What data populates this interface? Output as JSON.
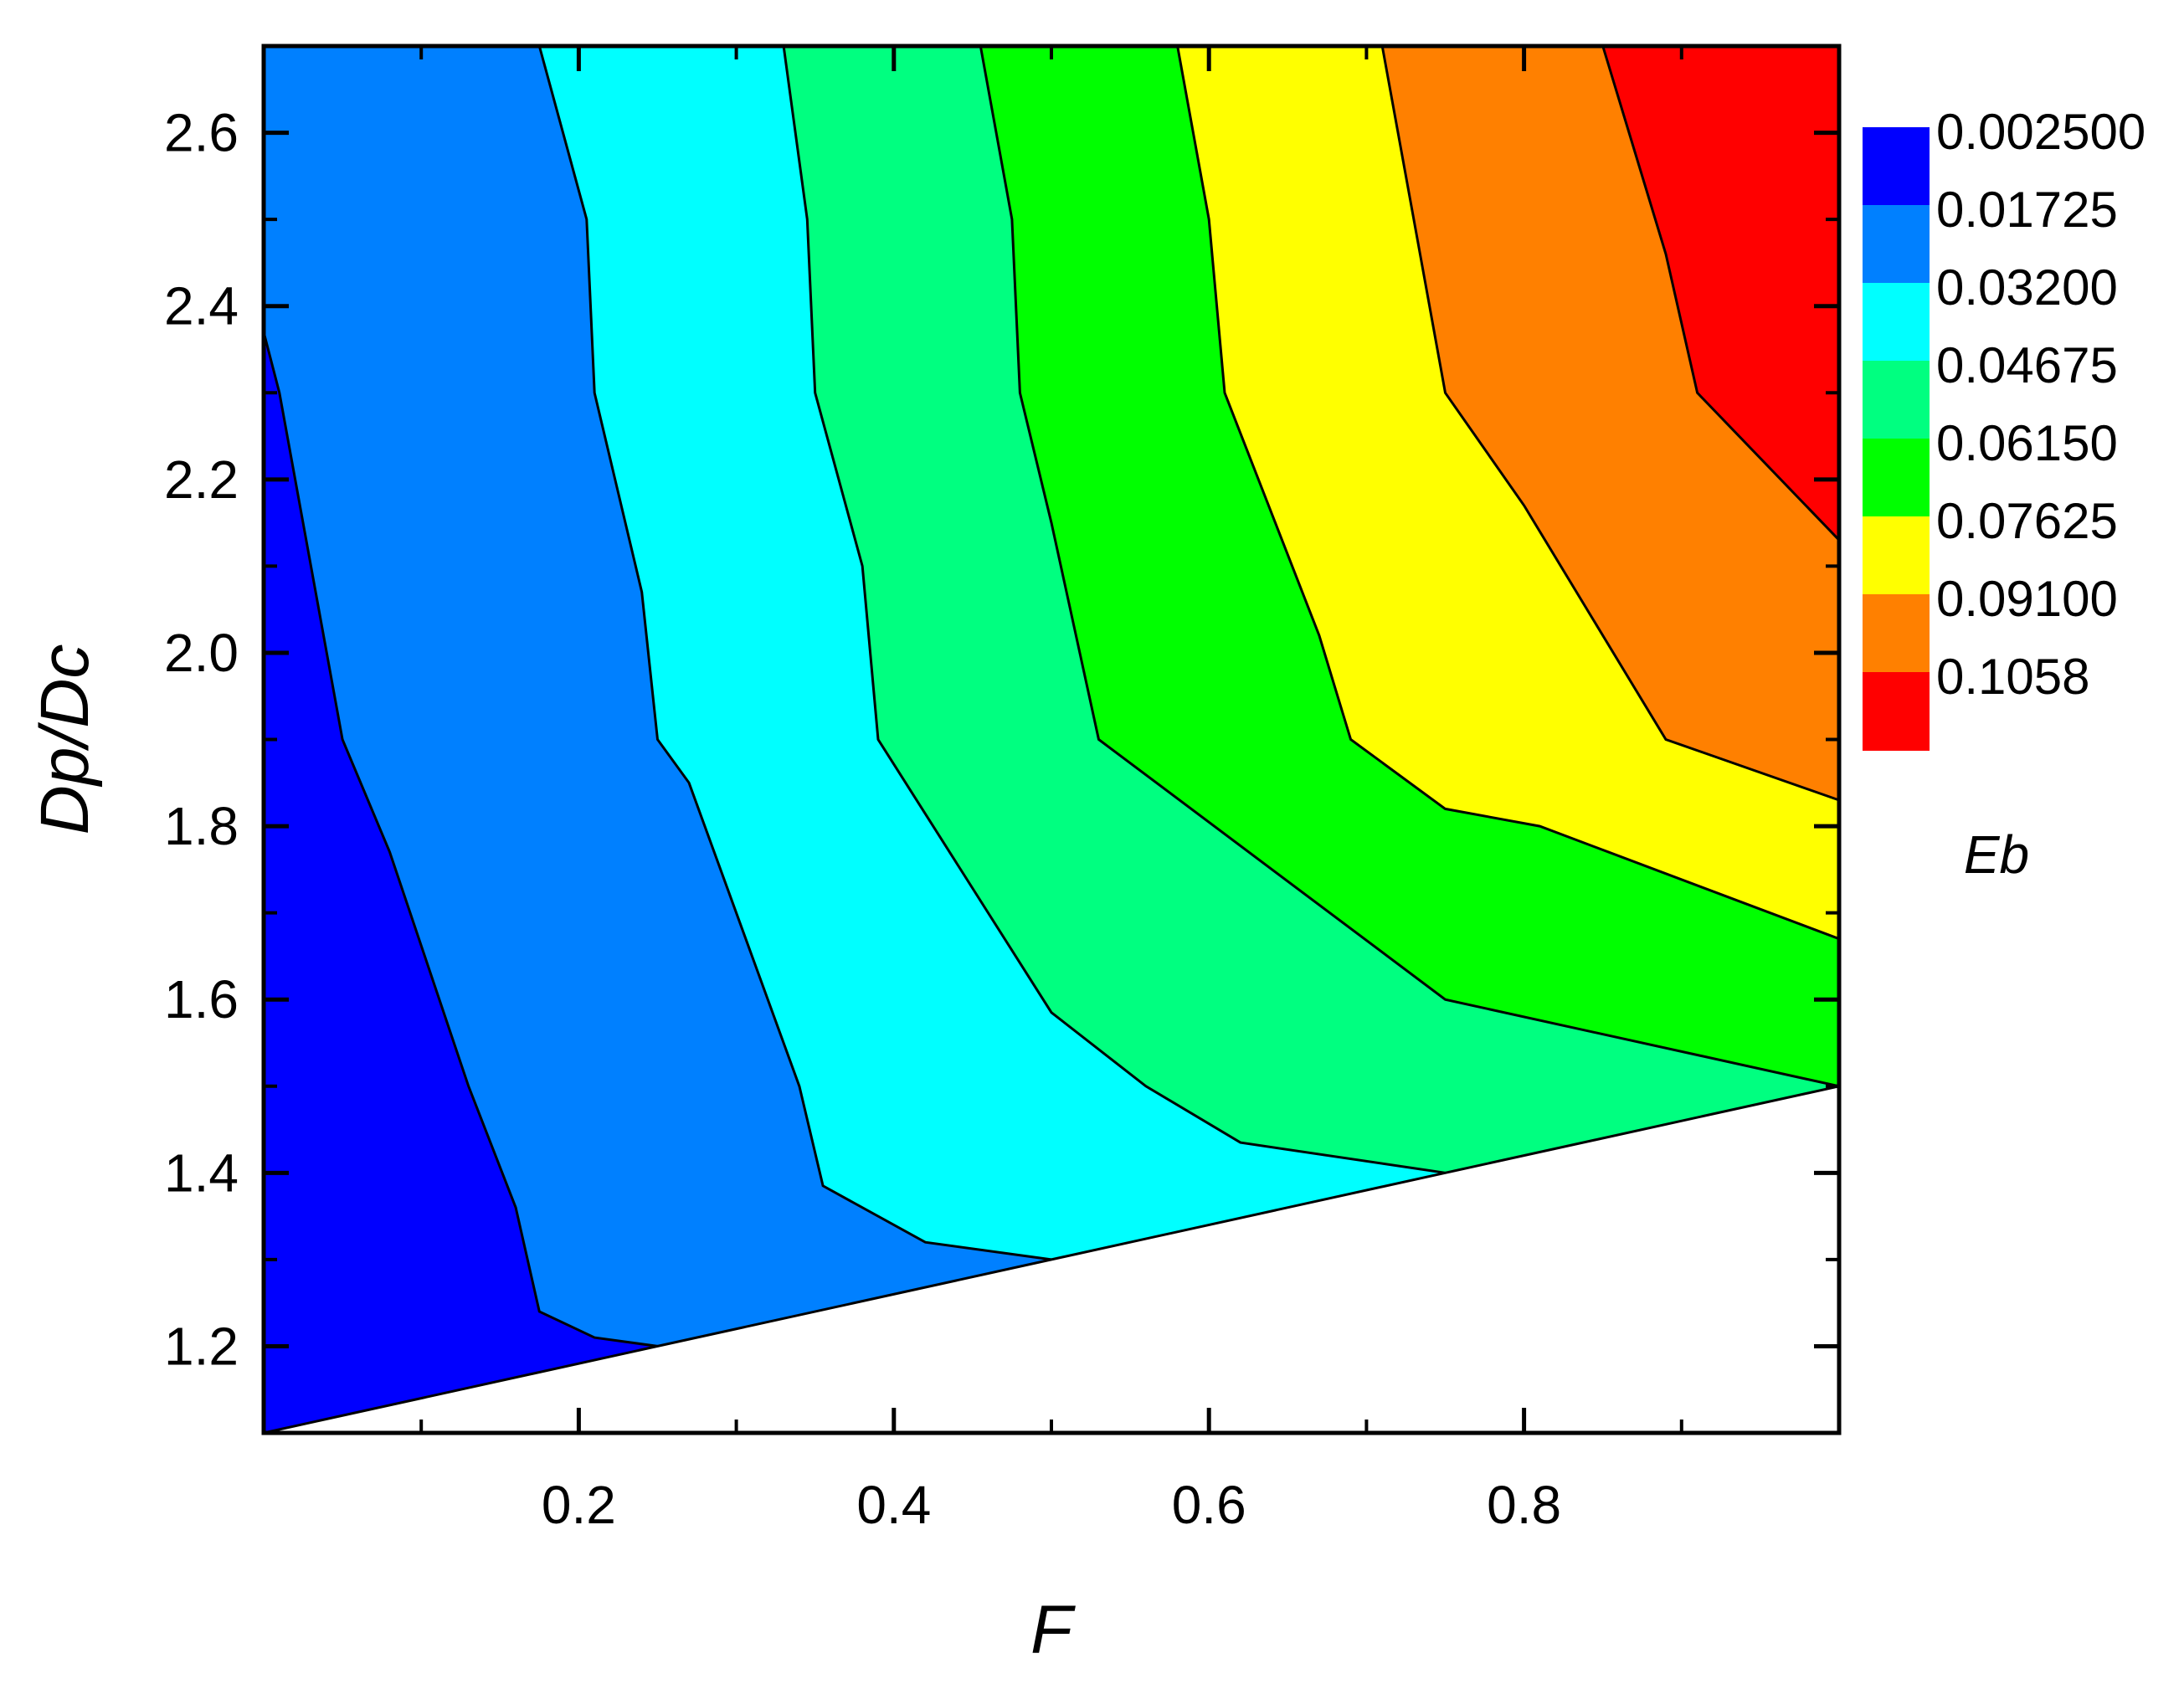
{
  "chart_data": {
    "type": "contour",
    "xlabel": "F",
    "ylabel": "Dp/Dc",
    "legend_title": "Eb",
    "xlim": [
      0.0,
      1.0
    ],
    "ylim": [
      1.1,
      2.7
    ],
    "x_ticks": [
      0.2,
      0.4,
      0.6,
      0.8
    ],
    "x_tick_labels": [
      "0.2",
      "0.4",
      "0.6",
      "0.8"
    ],
    "y_ticks": [
      1.2,
      1.4,
      1.6,
      1.8,
      2.0,
      2.2,
      2.4,
      2.6
    ],
    "y_tick_labels": [
      "1.2",
      "1.4",
      "1.6",
      "1.8",
      "2.0",
      "2.2",
      "2.4",
      "2.6"
    ],
    "levels": [
      "0.002500",
      "0.01725",
      "0.03200",
      "0.04675",
      "0.06150",
      "0.07625",
      "0.09100",
      "0.1058"
    ],
    "level_colors": [
      "#0000ff",
      "#0080ff",
      "#00ffff",
      "#00ff80",
      "#00ff00",
      "#ffff00",
      "#ff8000",
      "#ff0000"
    ],
    "boundary_line": [
      [
        0.0,
        1.1
      ],
      [
        0.25,
        1.2
      ],
      [
        0.5,
        1.3
      ],
      [
        0.75,
        1.4
      ],
      [
        1.0,
        1.5
      ]
    ],
    "contour_lines": [
      {
        "level": "0.01725",
        "points": [
          [
            0.0,
            2.37
          ],
          [
            0.01,
            2.3
          ],
          [
            0.05,
            1.9
          ],
          [
            0.08,
            1.77
          ],
          [
            0.13,
            1.5
          ],
          [
            0.16,
            1.36
          ],
          [
            0.175,
            1.24
          ],
          [
            0.21,
            1.21
          ],
          [
            0.25,
            1.2
          ]
        ]
      },
      {
        "level": "0.03200",
        "points": [
          [
            0.175,
            2.7
          ],
          [
            0.205,
            2.5
          ],
          [
            0.21,
            2.3
          ],
          [
            0.24,
            2.07
          ],
          [
            0.25,
            1.9
          ],
          [
            0.27,
            1.85
          ],
          [
            0.34,
            1.5
          ],
          [
            0.355,
            1.385
          ],
          [
            0.42,
            1.32
          ],
          [
            0.5,
            1.3
          ]
        ]
      },
      {
        "level": "0.04675",
        "points": [
          [
            0.33,
            2.7
          ],
          [
            0.345,
            2.5
          ],
          [
            0.35,
            2.3
          ],
          [
            0.38,
            2.1
          ],
          [
            0.39,
            1.9
          ],
          [
            0.5,
            1.585
          ],
          [
            0.56,
            1.5
          ],
          [
            0.62,
            1.435
          ],
          [
            0.75,
            1.4
          ]
        ]
      },
      {
        "level": "0.06150",
        "points": [
          [
            0.455,
            2.7
          ],
          [
            0.475,
            2.5
          ],
          [
            0.48,
            2.3
          ],
          [
            0.5,
            2.15
          ],
          [
            0.53,
            1.9
          ],
          [
            0.75,
            1.6
          ],
          [
            1.0,
            1.5
          ]
        ]
      },
      {
        "level": "0.07625",
        "points": [
          [
            0.58,
            2.7
          ],
          [
            0.6,
            2.5
          ],
          [
            0.61,
            2.3
          ],
          [
            0.67,
            2.02
          ],
          [
            0.69,
            1.9
          ],
          [
            0.75,
            1.82
          ],
          [
            0.81,
            1.8
          ],
          [
            1.0,
            1.67
          ]
        ]
      },
      {
        "level": "0.09100",
        "points": [
          [
            0.71,
            2.7
          ],
          [
            0.73,
            2.5
          ],
          [
            0.75,
            2.3
          ],
          [
            0.8,
            2.17
          ],
          [
            0.89,
            1.9
          ],
          [
            1.0,
            1.83
          ]
        ]
      },
      {
        "level": "0.1058",
        "points": [
          [
            0.85,
            2.7
          ],
          [
            0.89,
            2.46
          ],
          [
            0.91,
            2.3
          ],
          [
            1.0,
            2.13
          ]
        ]
      }
    ]
  }
}
